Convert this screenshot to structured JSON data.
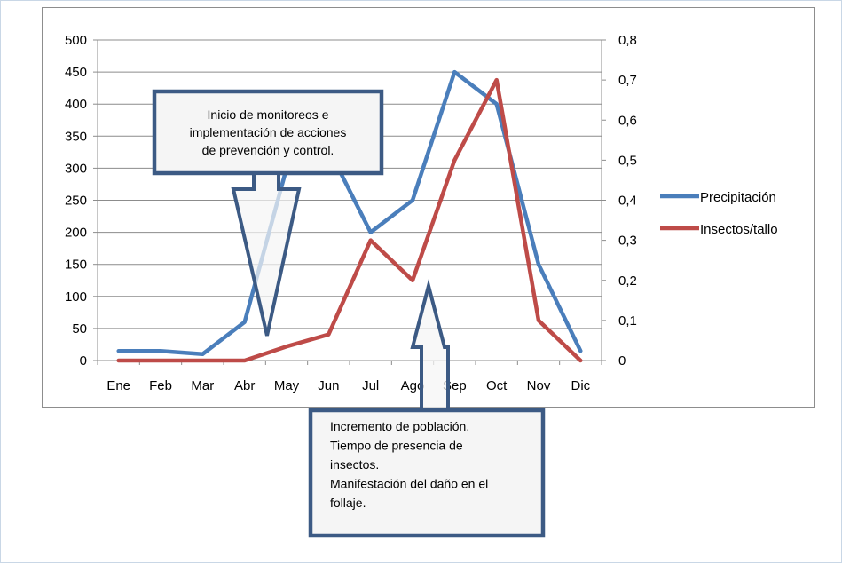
{
  "chart_data": {
    "type": "line",
    "categories": [
      "Ene",
      "Feb",
      "Mar",
      "Abr",
      "May",
      "Jun",
      "Jul",
      "Ago",
      "Sep",
      "Oct",
      "Nov",
      "Dic"
    ],
    "series": [
      {
        "name": "Precipitación",
        "axis": "left",
        "color": "#4a7ebb",
        "values": [
          15,
          15,
          10,
          60,
          300,
          330,
          200,
          250,
          450,
          400,
          150,
          15
        ]
      },
      {
        "name": "Insectos/tallo",
        "axis": "right",
        "color": "#be4b48",
        "values": [
          0,
          0,
          0,
          0,
          0.035,
          0.065,
          0.3,
          0.2,
          0.5,
          0.7,
          0.1,
          0
        ]
      }
    ],
    "y_left": {
      "min": 0,
      "max": 500,
      "ticks": [
        "0",
        "50",
        "100",
        "150",
        "200",
        "250",
        "300",
        "350",
        "400",
        "450",
        "500"
      ]
    },
    "y_right": {
      "min": 0,
      "max": 0.8,
      "ticks": [
        "0",
        "0,1",
        "0,2",
        "0,3",
        "0,4",
        "0,5",
        "0,6",
        "0,7",
        "0,8"
      ]
    },
    "grid": "horizontal",
    "legend_position": "right",
    "annotations": [
      {
        "name": "callout-monitoreo",
        "text_lines": [
          "Inicio de monitoreos e",
          "implementación de acciones",
          "de prevención  y control."
        ],
        "align": "center",
        "points_to": "Abr",
        "arrow_direction": "down"
      },
      {
        "name": "callout-poblacion",
        "text_lines": [
          "Incremento de población.",
          "Tiempo de presencia de",
          "insectos.",
          "Manifestación del daño en el",
          "follaje."
        ],
        "align": "left",
        "points_to": "Ago",
        "arrow_direction": "up"
      }
    ]
  }
}
